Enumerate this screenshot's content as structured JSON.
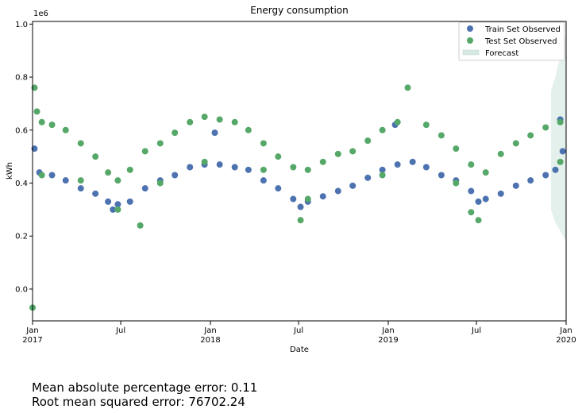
{
  "chart_data": {
    "type": "scatter",
    "title": "Energy consumption",
    "xlabel": "Date",
    "ylabel": "kWh",
    "y_offset_label": "1e6",
    "x_range": [
      "2017-01-01",
      "2020-01-01"
    ],
    "ylim": [
      -0.12,
      1.01
    ],
    "y_ticks": [
      "0.0",
      "0.2",
      "0.4",
      "0.6",
      "0.8",
      "1.0"
    ],
    "y_tick_values": [
      0.0,
      0.2,
      0.4,
      0.6,
      0.8,
      1.0
    ],
    "x_ticks": [
      {
        "date": "2017-01-01",
        "label": "Jan",
        "year": "2017"
      },
      {
        "date": "2017-07-01",
        "label": "Jul",
        "year": ""
      },
      {
        "date": "2018-01-01",
        "label": "Jan",
        "year": "2018"
      },
      {
        "date": "2018-07-01",
        "label": "Jul",
        "year": ""
      },
      {
        "date": "2019-01-01",
        "label": "Jan",
        "year": "2019"
      },
      {
        "date": "2019-07-01",
        "label": "Jul",
        "year": ""
      },
      {
        "date": "2020-01-01",
        "label": "Jan",
        "year": "2020"
      }
    ],
    "grid": false,
    "legend_position": "top-right",
    "series": [
      {
        "name": "Train Set Observed",
        "color": "#4c72b0",
        "marker": "circle",
        "points": [
          [
            "2017-01-15",
            0.44
          ],
          [
            "2017-02-10",
            0.43
          ],
          [
            "2017-03-10",
            0.41
          ],
          [
            "2017-04-10",
            0.38
          ],
          [
            "2017-05-10",
            0.36
          ],
          [
            "2017-06-05",
            0.33
          ],
          [
            "2017-06-25",
            0.32
          ],
          [
            "2017-07-20",
            0.33
          ],
          [
            "2017-08-20",
            0.38
          ],
          [
            "2017-09-20",
            0.41
          ],
          [
            "2017-10-20",
            0.43
          ],
          [
            "2017-11-20",
            0.46
          ],
          [
            "2017-12-20",
            0.47
          ],
          [
            "2018-01-20",
            0.47
          ],
          [
            "2018-02-20",
            0.46
          ],
          [
            "2018-03-20",
            0.45
          ],
          [
            "2018-04-20",
            0.41
          ],
          [
            "2018-05-20",
            0.38
          ],
          [
            "2018-06-20",
            0.34
          ],
          [
            "2018-07-20",
            0.33
          ],
          [
            "2018-08-20",
            0.35
          ],
          [
            "2018-09-20",
            0.37
          ],
          [
            "2018-10-20",
            0.39
          ],
          [
            "2018-11-20",
            0.42
          ],
          [
            "2018-12-20",
            0.45
          ],
          [
            "2019-01-20",
            0.47
          ],
          [
            "2019-02-20",
            0.48
          ],
          [
            "2019-03-20",
            0.46
          ],
          [
            "2019-04-20",
            0.43
          ],
          [
            "2019-05-20",
            0.41
          ],
          [
            "2019-06-20",
            0.37
          ],
          [
            "2019-07-20",
            0.34
          ],
          [
            "2019-08-20",
            0.36
          ],
          [
            "2019-09-20",
            0.39
          ],
          [
            "2019-10-20",
            0.41
          ],
          [
            "2019-11-20",
            0.43
          ],
          [
            "2019-12-10",
            0.45
          ],
          [
            "2019-12-25",
            0.52
          ],
          [
            "2017-01-05",
            0.53
          ],
          [
            "2017-06-15",
            0.3
          ],
          [
            "2018-07-05",
            0.31
          ],
          [
            "2019-07-05",
            0.33
          ],
          [
            "2018-01-10",
            0.59
          ],
          [
            "2019-01-15",
            0.62
          ],
          [
            "2019-12-20",
            0.64
          ]
        ]
      },
      {
        "name": "Test Set Observed",
        "color": "#55a868",
        "marker": "circle",
        "points": [
          [
            "2017-01-01",
            -0.07
          ],
          [
            "2017-01-05",
            0.76
          ],
          [
            "2017-01-10",
            0.67
          ],
          [
            "2017-01-20",
            0.63
          ],
          [
            "2017-02-10",
            0.62
          ],
          [
            "2017-03-10",
            0.6
          ],
          [
            "2017-04-10",
            0.55
          ],
          [
            "2017-05-10",
            0.5
          ],
          [
            "2017-06-05",
            0.44
          ],
          [
            "2017-06-25",
            0.41
          ],
          [
            "2017-07-20",
            0.45
          ],
          [
            "2017-08-20",
            0.52
          ],
          [
            "2017-09-20",
            0.55
          ],
          [
            "2017-10-20",
            0.59
          ],
          [
            "2017-11-20",
            0.63
          ],
          [
            "2017-12-20",
            0.65
          ],
          [
            "2018-01-20",
            0.64
          ],
          [
            "2018-02-20",
            0.63
          ],
          [
            "2018-03-20",
            0.6
          ],
          [
            "2018-04-20",
            0.55
          ],
          [
            "2018-05-20",
            0.5
          ],
          [
            "2018-06-20",
            0.46
          ],
          [
            "2018-07-20",
            0.45
          ],
          [
            "2018-08-20",
            0.48
          ],
          [
            "2018-09-20",
            0.51
          ],
          [
            "2018-10-20",
            0.52
          ],
          [
            "2018-11-20",
            0.56
          ],
          [
            "2018-12-20",
            0.6
          ],
          [
            "2019-01-20",
            0.63
          ],
          [
            "2019-02-10",
            0.76
          ],
          [
            "2019-03-20",
            0.62
          ],
          [
            "2019-04-20",
            0.58
          ],
          [
            "2019-05-20",
            0.53
          ],
          [
            "2019-06-20",
            0.47
          ],
          [
            "2019-07-20",
            0.44
          ],
          [
            "2019-08-20",
            0.51
          ],
          [
            "2019-09-20",
            0.55
          ],
          [
            "2019-10-20",
            0.58
          ],
          [
            "2019-11-20",
            0.61
          ],
          [
            "2019-12-20",
            0.63
          ],
          [
            "2017-01-20",
            0.43
          ],
          [
            "2017-04-10",
            0.41
          ],
          [
            "2017-06-25",
            0.3
          ],
          [
            "2017-08-10",
            0.24
          ],
          [
            "2017-09-20",
            0.4
          ],
          [
            "2017-12-20",
            0.48
          ],
          [
            "2018-04-20",
            0.45
          ],
          [
            "2018-07-20",
            0.34
          ],
          [
            "2018-07-05",
            0.26
          ],
          [
            "2018-12-20",
            0.43
          ],
          [
            "2019-05-20",
            0.4
          ],
          [
            "2019-06-20",
            0.29
          ],
          [
            "2019-07-05",
            0.26
          ],
          [
            "2019-12-20",
            0.48
          ]
        ]
      },
      {
        "name": "Forecast",
        "color": "#cfe3e0",
        "marker": "band",
        "points": [
          [
            "2019-12-01",
            0.3,
            0.75
          ],
          [
            "2019-12-10",
            0.25,
            0.8
          ],
          [
            "2019-12-20",
            0.22,
            0.88
          ],
          [
            "2020-01-01",
            0.18,
            0.96
          ]
        ]
      }
    ]
  },
  "metrics": {
    "mape_label": "Mean absolute percentage error: 0.11",
    "rmse_label": "Root mean squared error: 76702.24"
  }
}
